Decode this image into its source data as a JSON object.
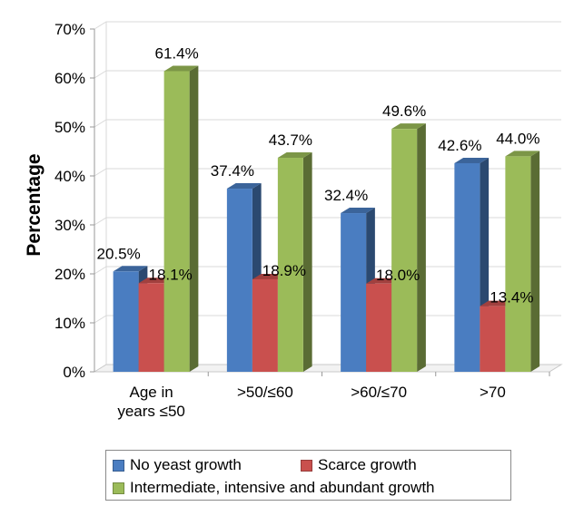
{
  "chart_data": {
    "type": "bar",
    "categories": [
      [
        "Age in",
        "years ≤50"
      ],
      [
        ">50/≤60"
      ],
      [
        ">60/≤70"
      ],
      [
        ">70"
      ]
    ],
    "series": [
      {
        "name": "No yeast growth",
        "values": [
          20.5,
          37.4,
          32.4,
          42.6
        ],
        "labels": [
          "20.5%",
          "37.4%",
          "32.4%",
          "42.6%"
        ],
        "color": "#4a7dc1"
      },
      {
        "name": "Scarce growth",
        "values": [
          18.1,
          18.9,
          18.0,
          13.4
        ],
        "labels": [
          "18.1%",
          "18.9%",
          "18.0%",
          "13.4%"
        ],
        "color": "#c9504e"
      },
      {
        "name": "Intermediate, intensive and abundant growth",
        "values": [
          61.4,
          43.7,
          49.6,
          44.0
        ],
        "labels": [
          "61.4%",
          "43.7%",
          "49.6%",
          "44.0%"
        ],
        "color": "#9bbb59"
      }
    ],
    "yticks": [
      "0%",
      "10%",
      "20%",
      "30%",
      "40%",
      "50%",
      "60%",
      "70%"
    ],
    "ylim": [
      0,
      70
    ],
    "ylabel": "Percentage",
    "xlabel": "",
    "grid": true,
    "legend_position": "bottom",
    "style": "3d-clustered-bar"
  }
}
